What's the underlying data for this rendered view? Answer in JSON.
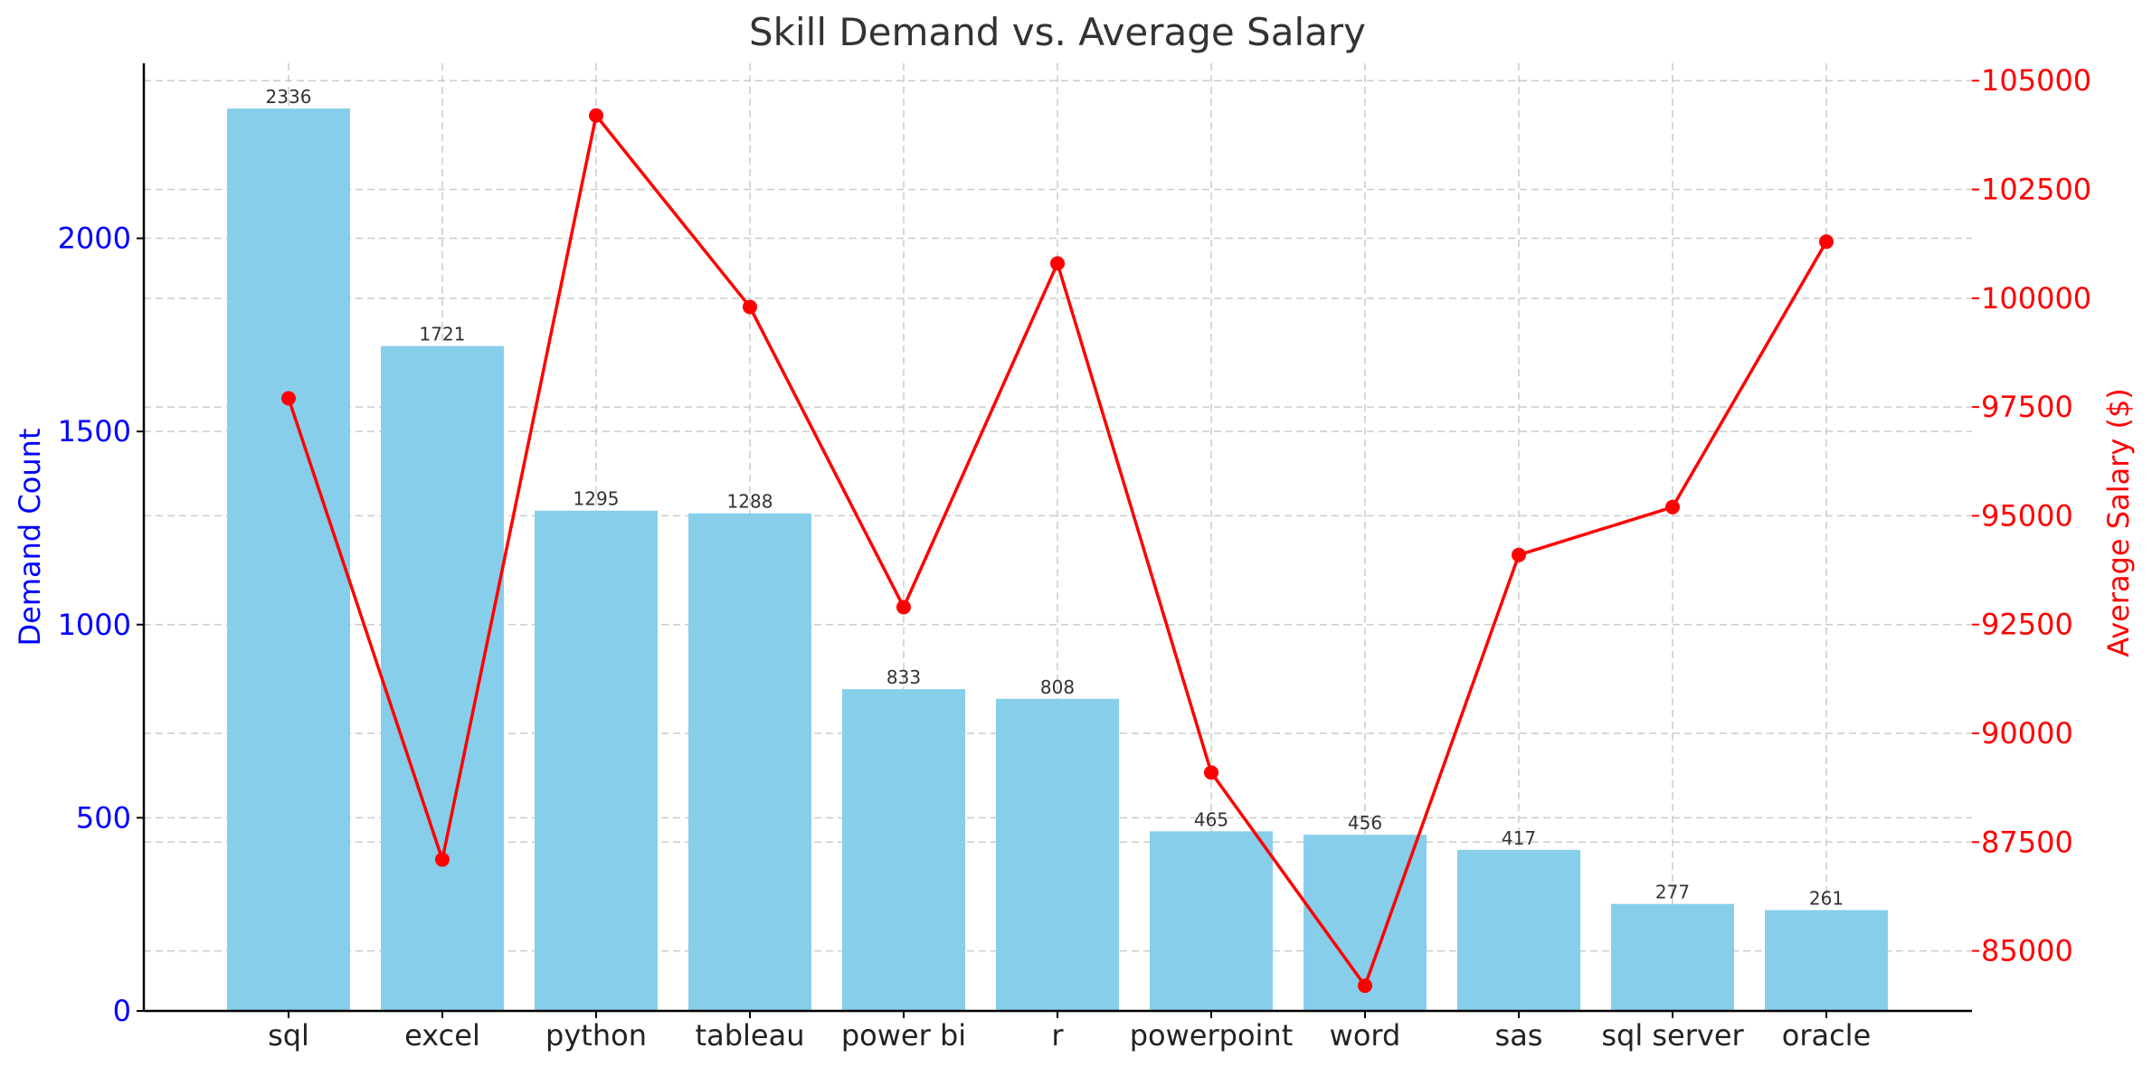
{
  "chart_data": {
    "type": "bar",
    "title": "Skill Demand vs. Average Salary",
    "xlabel": "",
    "categories": [
      "sql",
      "excel",
      "python",
      "tableau",
      "power bi",
      "r",
      "powerpoint",
      "word",
      "sas",
      "sql server",
      "oracle"
    ],
    "series": [
      {
        "name": "Demand Count",
        "type": "bar",
        "axis": "left",
        "color": "#87ceeb",
        "values": [
          2336,
          1721,
          1295,
          1288,
          833,
          808,
          465,
          456,
          417,
          277,
          261
        ]
      },
      {
        "name": "Average Salary ($)",
        "type": "line",
        "axis": "right",
        "color": "#ff0000",
        "values": [
          97700,
          87100,
          104200,
          99800,
          92900,
          100800,
          89100,
          84200,
          94100,
          95200,
          101300
        ]
      }
    ],
    "ylabel": "Demand Count",
    "ylabel_right": "Average Salary ($)",
    "ylim": [
      0,
      2453
    ],
    "ylim_right": [
      83620,
      105400
    ],
    "yticks": [
      0,
      500,
      1000,
      1500,
      2000
    ],
    "yticks_right": [
      85000,
      87500,
      90000,
      92500,
      95000,
      97500,
      100000,
      102500,
      105000
    ],
    "grid": true,
    "colors": {
      "left_axis": "#0000ff",
      "right_axis": "#ff0000",
      "bar": "#87ceeb",
      "line": "#ff0000"
    }
  }
}
